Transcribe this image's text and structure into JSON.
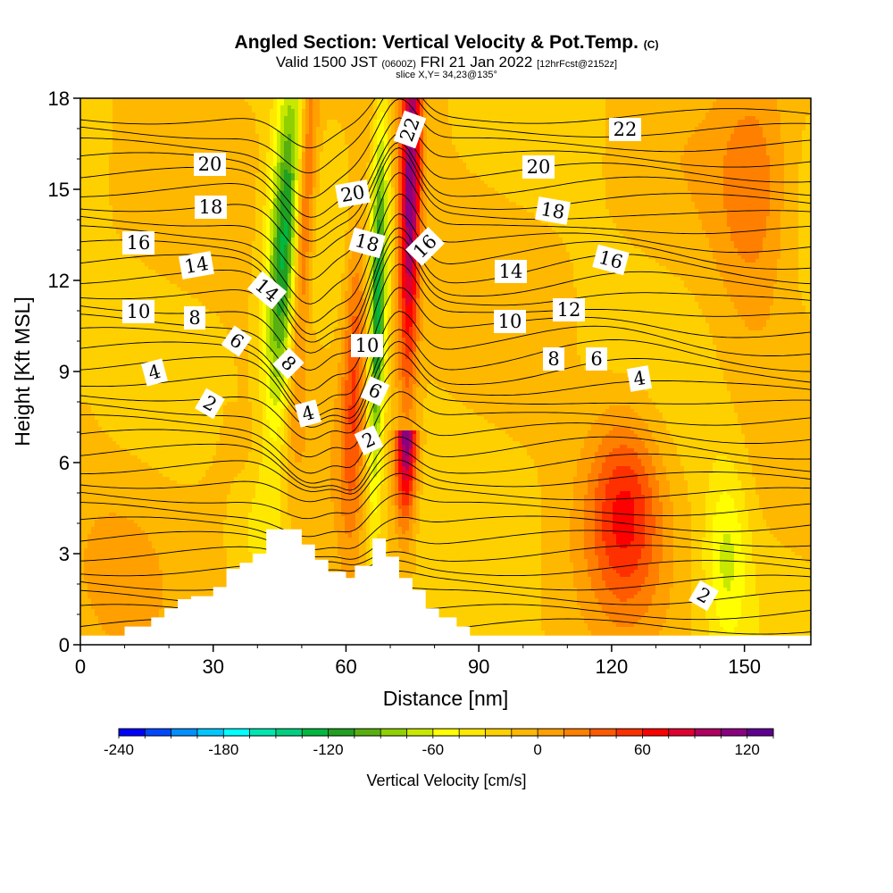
{
  "header": {
    "title": "Angled Section: Vertical Velocity & Pot.Temp.",
    "title_suffix": "(C)",
    "valid_prefix": "Valid 1500 JST",
    "valid_zulu": "(0600Z)",
    "valid_date": "FRI 21 Jan 2022",
    "forecast": "[12hrFcst@2152z]",
    "slice": "slice X,Y= 34,23@135°"
  },
  "chart_data": {
    "type": "heatmap",
    "xlabel": "Distance [nm]",
    "ylabel": "Height [Kft MSL]",
    "xlim": [
      0,
      165
    ],
    "ylim": [
      0,
      18
    ],
    "xticks": [
      0,
      30,
      60,
      90,
      120,
      150
    ],
    "yticks": [
      0,
      3,
      6,
      9,
      12,
      15,
      18
    ],
    "colorbar": {
      "title": "Vertical Velocity [cm/s]",
      "min": -240,
      "max": 135,
      "step": 15,
      "tick_values": [
        -240,
        -180,
        -120,
        -60,
        0,
        60,
        120
      ],
      "colors": [
        "#0000ff",
        "#0048ff",
        "#0090ff",
        "#00c8ff",
        "#00ffff",
        "#00e6b0",
        "#00d080",
        "#00b840",
        "#20a020",
        "#58b010",
        "#90d000",
        "#c8e800",
        "#ffff00",
        "#ffe800",
        "#ffd000",
        "#ffb800",
        "#ffa000",
        "#ff8000",
        "#ff5a00",
        "#ff3000",
        "#ff0000",
        "#e00030",
        "#b00060",
        "#8a0080",
        "#600090"
      ]
    },
    "velocity_features": [
      {
        "kind": "updraft",
        "center_nm": 49,
        "max_cm_s": 75,
        "height_kft": [
          4,
          18
        ]
      },
      {
        "kind": "downdraft",
        "center_nm": 45,
        "min_cm_s": -105,
        "height_kft": [
          4,
          18
        ]
      },
      {
        "kind": "updraft",
        "center_nm": 62,
        "max_cm_s": 60,
        "height_kft": [
          3,
          15
        ]
      },
      {
        "kind": "downdraft",
        "center_nm": 67,
        "min_cm_s": -105,
        "height_kft": [
          3,
          18
        ]
      },
      {
        "kind": "updraft",
        "center_nm": 74,
        "max_cm_s": 135,
        "height_kft": [
          5,
          18
        ]
      },
      {
        "kind": "updraft",
        "center_nm": 123,
        "max_cm_s": 60,
        "height_kft": [
          1,
          8
        ]
      },
      {
        "kind": "downdraft",
        "center_nm": 146,
        "min_cm_s": -45,
        "height_kft": [
          1,
          6
        ]
      }
    ],
    "terrain_kft": {
      "x": [
        0,
        10,
        16,
        19,
        22,
        25,
        30,
        33,
        36,
        39,
        42,
        47,
        50,
        53,
        56,
        60,
        62,
        66,
        69,
        72,
        75,
        78,
        81,
        85,
        88,
        90,
        165
      ],
      "top": [
        0.3,
        0.6,
        0.9,
        1.2,
        1.5,
        1.6,
        1.9,
        2.5,
        2.7,
        3.0,
        3.8,
        3.8,
        3.3,
        2.8,
        2.4,
        2.2,
        2.6,
        3.5,
        2.9,
        2.2,
        1.8,
        1.2,
        0.9,
        0.6,
        0.3,
        0.3,
        0.3
      ]
    },
    "contour_labels": [
      "2",
      "2",
      "2",
      "4",
      "4",
      "4",
      "6",
      "6",
      "6",
      "8",
      "8",
      "8",
      "10",
      "10",
      "10",
      "12",
      "14",
      "14",
      "14",
      "16",
      "16",
      "16",
      "18",
      "18",
      "18",
      "20",
      "20",
      "20",
      "22",
      "22"
    ],
    "contour_levels_c": [
      2,
      4,
      6,
      8,
      10,
      12,
      14,
      16,
      18,
      20,
      22
    ]
  }
}
